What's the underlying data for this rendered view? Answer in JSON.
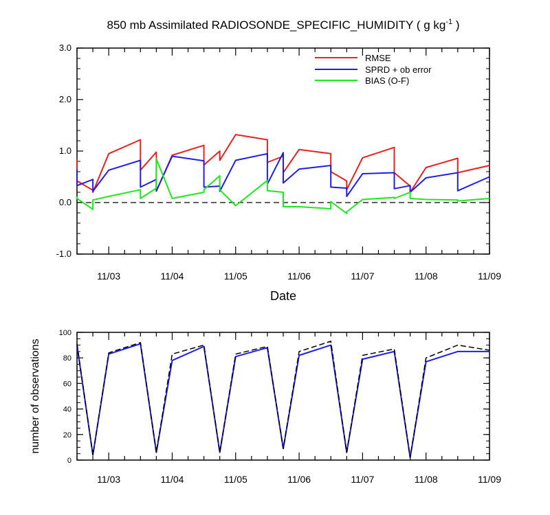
{
  "chart_data": [
    {
      "type": "line",
      "title": "850 mb Assimilated RADIOSONDE_SPECIFIC_HUMIDITY ( g kg",
      "title_sup": "-1",
      "title_end": " )",
      "xlabel": "Date",
      "ylabel": "",
      "ylim": [
        -1.0,
        3.0
      ],
      "yticks": [
        "-1.0",
        "0.0",
        "1.0",
        "2.0",
        "3.0"
      ],
      "xlim": [
        2.5,
        9.0
      ],
      "xticks": [
        "11/03",
        "11/04",
        "11/05",
        "11/06",
        "11/07",
        "11/08",
        "11/09"
      ],
      "zero_line": true,
      "legend_position": "top-right",
      "series": [
        {
          "name": "RMSE",
          "color": "#e8201e",
          "x": [
            2.5,
            2.5,
            2.75,
            2.75,
            3.0,
            3.5,
            3.5,
            3.75,
            3.75,
            4.0,
            4.5,
            4.5,
            4.75,
            4.75,
            5.0,
            5.5,
            5.5,
            5.75,
            5.75,
            6.0,
            6.5,
            6.5,
            6.75,
            6.75,
            7.0,
            7.5,
            7.5,
            7.75,
            7.75,
            8.0,
            8.5,
            8.5,
            9.0
          ],
          "y": [
            0.85,
            0.42,
            0.24,
            0.2,
            0.95,
            1.22,
            0.63,
            0.98,
            0.22,
            0.92,
            1.11,
            0.73,
            1.0,
            0.82,
            1.32,
            1.22,
            0.78,
            0.9,
            0.58,
            1.03,
            0.95,
            0.6,
            0.42,
            0.25,
            0.87,
            1.07,
            0.58,
            0.32,
            0.2,
            0.68,
            0.86,
            0.58,
            0.72
          ]
        },
        {
          "name": "SPRD + ob error",
          "color": "#1e1ee8",
          "x": [
            2.5,
            2.5,
            2.75,
            2.75,
            3.0,
            3.5,
            3.5,
            3.75,
            3.75,
            4.0,
            4.5,
            4.5,
            4.75,
            4.75,
            5.0,
            5.5,
            5.5,
            5.75,
            5.75,
            6.0,
            6.5,
            6.5,
            6.75,
            6.75,
            7.0,
            7.5,
            7.5,
            7.75,
            7.75,
            8.0,
            8.5,
            8.5,
            9.0
          ],
          "y": [
            0.65,
            0.33,
            0.45,
            0.22,
            0.63,
            0.82,
            0.3,
            0.45,
            0.23,
            0.9,
            0.81,
            0.3,
            0.32,
            0.22,
            0.82,
            0.95,
            0.36,
            0.97,
            0.38,
            0.65,
            0.72,
            0.3,
            0.28,
            0.12,
            0.56,
            0.58,
            0.27,
            0.33,
            0.2,
            0.48,
            0.58,
            0.23,
            0.5
          ]
        },
        {
          "name": "BIAS (O-F)",
          "color": "#1ee81e",
          "x": [
            2.5,
            2.5,
            2.75,
            2.75,
            3.0,
            3.5,
            3.5,
            3.75,
            3.75,
            4.0,
            4.5,
            4.5,
            4.75,
            4.75,
            5.0,
            5.5,
            5.5,
            5.75,
            5.75,
            6.0,
            6.5,
            6.5,
            6.75,
            6.75,
            7.0,
            7.5,
            7.5,
            7.75,
            7.75,
            8.0,
            8.5,
            8.5,
            9.0
          ],
          "y": [
            0.12,
            0.08,
            -0.13,
            0.05,
            0.12,
            0.25,
            0.08,
            0.28,
            0.85,
            0.08,
            0.2,
            0.25,
            0.52,
            0.25,
            -0.06,
            0.43,
            0.23,
            0.2,
            -0.08,
            -0.08,
            -0.12,
            0.02,
            -0.21,
            -0.18,
            0.06,
            0.1,
            0.08,
            0.2,
            0.08,
            0.06,
            0.05,
            0.03,
            0.08
          ]
        }
      ]
    },
    {
      "type": "line",
      "title": "",
      "xlabel": "",
      "ylabel": "number of observations",
      "ylim": [
        0,
        100
      ],
      "yticks": [
        "0",
        "20",
        "40",
        "60",
        "80",
        "100"
      ],
      "xlim": [
        2.5,
        9.0
      ],
      "xticks": [
        "11/03",
        "11/04",
        "11/05",
        "11/06",
        "11/07",
        "11/08",
        "11/09"
      ],
      "series": [
        {
          "color": "#1e1ee8",
          "dash": "solid",
          "x": [
            2.5,
            2.75,
            3.0,
            3.5,
            3.75,
            4.0,
            4.5,
            4.75,
            5.0,
            5.5,
            5.75,
            6.0,
            6.5,
            6.75,
            7.0,
            7.5,
            7.75,
            8.0,
            8.5,
            9.0
          ],
          "y": [
            90,
            4,
            83,
            91,
            6,
            78,
            89,
            6,
            81,
            88,
            9,
            82,
            90,
            6,
            79,
            85,
            2,
            77,
            85,
            85
          ]
        },
        {
          "color": "#000000",
          "dash": "dashed",
          "x": [
            2.5,
            2.75,
            3.0,
            3.5,
            3.75,
            4.0,
            4.5,
            4.75,
            5.0,
            5.5,
            5.75,
            6.0,
            6.5,
            6.75,
            7.0,
            7.5,
            7.75,
            8.0,
            8.5,
            9.0
          ],
          "y": [
            91,
            4,
            84,
            92,
            6,
            83,
            90,
            6,
            83,
            89,
            9,
            85,
            93,
            6,
            82,
            87,
            2,
            80,
            90,
            86
          ]
        }
      ]
    }
  ]
}
